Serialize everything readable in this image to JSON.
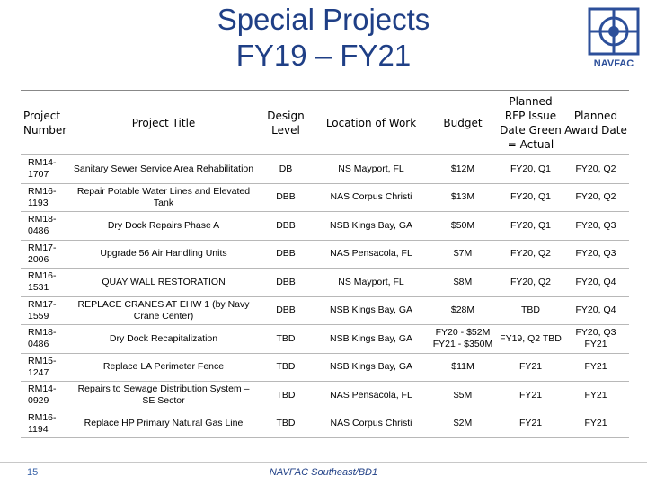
{
  "header": {
    "title_line1": "Special Projects",
    "title_line2": "FY19 – FY21",
    "logo_text": "NAVFAC"
  },
  "table": {
    "columns": [
      "Project Number",
      "Project Title",
      "Design Level",
      "Location of Work",
      "Budget",
      "Planned RFP Issue Date Green = Actual",
      "Planned Award Date"
    ],
    "rows": [
      [
        "RM14-1707",
        "Sanitary Sewer Service Area Rehabilitation",
        "DB",
        "NS Mayport, FL",
        "$12M",
        "FY20, Q1",
        "FY20, Q2"
      ],
      [
        "RM16-1193",
        "Repair Potable Water Lines and Elevated Tank",
        "DBB",
        "NAS Corpus Christi",
        "$13M",
        "FY20, Q1",
        "FY20, Q2"
      ],
      [
        "RM18-0486",
        "Dry Dock Repairs Phase A",
        "DBB",
        "NSB Kings Bay, GA",
        "$50M",
        "FY20, Q1",
        "FY20, Q3"
      ],
      [
        "RM17-2006",
        "Upgrade 56 Air Handling Units",
        "DBB",
        "NAS Pensacola, FL",
        "$7M",
        "FY20, Q2",
        "FY20, Q3"
      ],
      [
        "RM16-1531",
        "QUAY WALL RESTORATION",
        "DBB",
        "NS Mayport, FL",
        "$8M",
        "FY20, Q2",
        "FY20, Q4"
      ],
      [
        "RM17-1559",
        "REPLACE CRANES AT EHW 1 (by Navy Crane Center)",
        "DBB",
        "NSB Kings Bay, GA",
        "$28M",
        "TBD",
        "FY20, Q4"
      ],
      [
        "RM18-0486",
        "Dry Dock Recapitalization",
        "TBD",
        "NSB Kings Bay, GA",
        "FY20 - $52M FY21 - $350M",
        "FY19, Q2 TBD",
        "FY20, Q3 FY21"
      ],
      [
        "RM15-1247",
        "Replace LA Perimeter Fence",
        "TBD",
        "NSB Kings Bay, GA",
        "$11M",
        "FY21",
        "FY21"
      ],
      [
        "RM14-0929",
        "Repairs to Sewage Distribution System – SE Sector",
        "TBD",
        "NAS Pensacola, FL",
        "$5M",
        "FY21",
        "FY21"
      ],
      [
        "RM16-1194",
        "Replace HP Primary Natural Gas Line",
        "TBD",
        "NAS Corpus Christi",
        "$2M",
        "FY21",
        "FY21"
      ]
    ]
  },
  "footer": {
    "page_number": "15",
    "center_text": "NAVFAC Southeast/BD1"
  },
  "colors": {
    "title": "#1f3f86",
    "logo": "#2c4f9a"
  }
}
